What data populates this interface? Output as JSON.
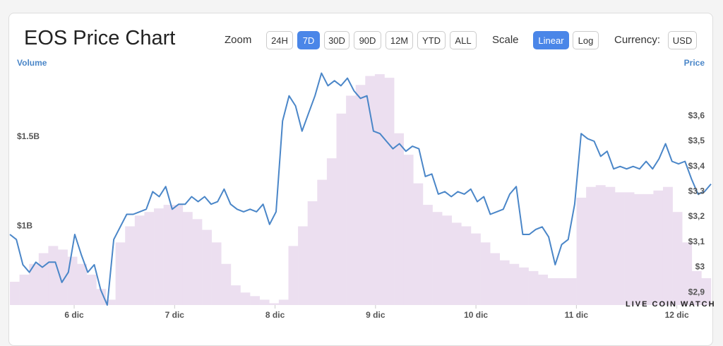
{
  "header": {
    "title": "EOS Price Chart"
  },
  "controls": {
    "zoom_label": "Zoom",
    "zoom_options": [
      "24H",
      "7D",
      "30D",
      "90D",
      "12M",
      "YTD",
      "ALL"
    ],
    "scale_label": "Scale",
    "scale_options": [
      "Linear",
      "Log"
    ],
    "currency_label": "Currency:",
    "currency": "USD"
  },
  "watermark": "LIVE COIN WATCH",
  "chart_data": {
    "type": "combo",
    "xlim": [
      5.36,
      12.34
    ],
    "xticks": [
      {
        "value": 6,
        "label": "6 dic"
      },
      {
        "value": 7,
        "label": "7 dic"
      },
      {
        "value": 8,
        "label": "8 dic"
      },
      {
        "value": 9,
        "label": "9 dic"
      },
      {
        "value": 10,
        "label": "10 dic"
      },
      {
        "value": 11,
        "label": "11 dic"
      },
      {
        "value": 12,
        "label": "12 dic"
      }
    ],
    "ylim": [
      0.56,
      1.87
    ],
    "yticks": [
      {
        "value": 1,
        "label": "$1B"
      },
      {
        "value": 1.5,
        "label": "$1.5B"
      }
    ],
    "y2lim": [
      2.85,
      3.78
    ],
    "y2ticks": [
      {
        "value": 2.9,
        "label": "$2,9"
      },
      {
        "value": 3,
        "label": "$3"
      },
      {
        "value": 3.1,
        "label": "$3,1"
      },
      {
        "value": 3.2,
        "label": "$3,2"
      },
      {
        "value": 3.3,
        "label": "$3,3"
      },
      {
        "value": 3.4,
        "label": "$3,4"
      },
      {
        "value": 3.5,
        "label": "$3,5"
      },
      {
        "value": 3.6,
        "label": "$3,6"
      }
    ],
    "series": [
      {
        "name": "Volume",
        "type": "bar",
        "axis": "y",
        "color": "#ecdff0",
        "values": [
          0.69,
          0.73,
          0.79,
          0.85,
          0.89,
          0.87,
          0.83,
          0.79,
          0.73,
          0.65,
          0.59,
          0.91,
          1.0,
          1.06,
          1.08,
          1.1,
          1.12,
          1.12,
          1.08,
          1.04,
          0.98,
          0.91,
          0.79,
          0.67,
          0.63,
          0.61,
          0.59,
          0.57,
          0.59,
          0.89,
          1.0,
          1.14,
          1.26,
          1.38,
          1.63,
          1.73,
          1.79,
          1.84,
          1.85,
          1.83,
          1.52,
          1.4,
          1.24,
          1.12,
          1.08,
          1.06,
          1.02,
          1.0,
          0.96,
          0.91,
          0.85,
          0.81,
          0.79,
          0.77,
          0.75,
          0.73,
          0.71,
          0.71,
          0.71,
          1.16,
          1.22,
          1.23,
          1.22,
          1.19,
          1.19,
          1.18,
          1.18,
          1.2,
          1.22,
          1.08,
          0.91,
          0.75,
          0.71
        ]
      },
      {
        "name": "Price",
        "type": "line",
        "axis": "y2",
        "color": "#4a86c8",
        "values": [
          3.13,
          3.11,
          3.01,
          2.98,
          3.02,
          3.0,
          3.02,
          3.02,
          2.94,
          2.98,
          3.13,
          3.05,
          2.98,
          3.01,
          2.91,
          2.85,
          3.11,
          3.16,
          3.21,
          3.21,
          3.22,
          3.23,
          3.3,
          3.28,
          3.32,
          3.23,
          3.25,
          3.25,
          3.28,
          3.26,
          3.28,
          3.25,
          3.26,
          3.31,
          3.25,
          3.23,
          3.22,
          3.23,
          3.22,
          3.25,
          3.17,
          3.22,
          3.58,
          3.68,
          3.64,
          3.54,
          3.61,
          3.68,
          3.77,
          3.72,
          3.74,
          3.72,
          3.75,
          3.7,
          3.67,
          3.68,
          3.54,
          3.53,
          3.5,
          3.47,
          3.49,
          3.46,
          3.48,
          3.47,
          3.36,
          3.37,
          3.29,
          3.3,
          3.28,
          3.3,
          3.29,
          3.31,
          3.26,
          3.28,
          3.21,
          3.22,
          3.23,
          3.29,
          3.32,
          3.13,
          3.13,
          3.15,
          3.16,
          3.12,
          3.01,
          3.09,
          3.11,
          3.25,
          3.53,
          3.51,
          3.5,
          3.44,
          3.46,
          3.39,
          3.4,
          3.39,
          3.4,
          3.39,
          3.42,
          3.39,
          3.43,
          3.49,
          3.42,
          3.41,
          3.42,
          3.35,
          3.29,
          3.3,
          3.33
        ]
      }
    ]
  }
}
